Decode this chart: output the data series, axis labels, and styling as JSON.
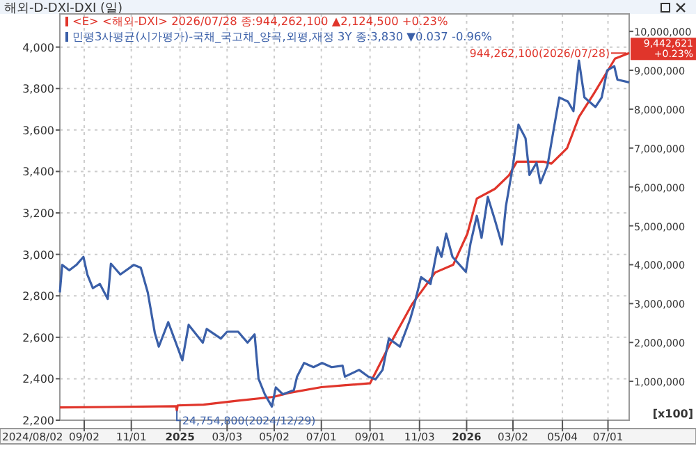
{
  "chart_data": {
    "type": "line",
    "title": "해외-D-DXI-DXI (일)",
    "y2label": "[x100]",
    "legend": "top left",
    "grid": true,
    "line_style": "solid",
    "marker": "none",
    "xlim": [
      "2024-08-02",
      "2026-07-28"
    ],
    "xticks": [
      {
        "value": "2024-09-02",
        "label": "09/02"
      },
      {
        "value": "2024-11-01",
        "label": "11/01"
      },
      {
        "value": "2025-01-02",
        "label": "2025"
      },
      {
        "value": "2025-03-03",
        "label": "03/03"
      },
      {
        "value": "2025-05-02",
        "label": "05/02"
      },
      {
        "value": "2025-07-01",
        "label": "07/01"
      },
      {
        "value": "2025-09-01",
        "label": "09/01"
      },
      {
        "value": "2025-11-03",
        "label": "11/03"
      },
      {
        "value": "2026-01-02",
        "label": "2026"
      },
      {
        "value": "2026-03-02",
        "label": "03/02"
      },
      {
        "value": "2026-05-04",
        "label": "05/04"
      },
      {
        "value": "2026-07-01",
        "label": "07/01"
      }
    ],
    "ylim": [
      2200,
      4160
    ],
    "yticks": [
      {
        "value": 2200,
        "label": "2,200"
      },
      {
        "value": 2400,
        "label": "2,400"
      },
      {
        "value": 2600,
        "label": "2,600"
      },
      {
        "value": 2800,
        "label": "2,800"
      },
      {
        "value": 3000,
        "label": "3,000"
      },
      {
        "value": 3200,
        "label": "3,200"
      },
      {
        "value": 3400,
        "label": "3,400"
      },
      {
        "value": 3600,
        "label": "3,600"
      },
      {
        "value": 3800,
        "label": "3,800"
      },
      {
        "value": 4000,
        "label": "4,000"
      }
    ],
    "y2lim": [
      0,
      10450000
    ],
    "y2ticks": [
      {
        "value": 1000000,
        "label": "1,000,000"
      },
      {
        "value": 2000000,
        "label": "2,000,000"
      },
      {
        "value": 3000000,
        "label": "3,000,000"
      },
      {
        "value": 4000000,
        "label": "4,000,000"
      },
      {
        "value": 5000000,
        "label": "5,000,000"
      },
      {
        "value": 6000000,
        "label": "6,000,000"
      },
      {
        "value": 7000000,
        "label": "7,000,000"
      },
      {
        "value": 8000000,
        "label": "8,000,000"
      },
      {
        "value": 9000000,
        "label": "9,000,000"
      },
      {
        "value": 10000000,
        "label": "10,000,000"
      }
    ],
    "series": [
      {
        "name": "<E> <해외-DXI> 2026/07/28 종:944,262,100 ▲2,124,500 +0.23%",
        "color": "#e0352b",
        "axis": "y2",
        "x": [
          "2024-08-02",
          "2024-10-01",
          "2024-12-28",
          "2024-12-29",
          "2024-12-30",
          "2025-02-01",
          "2025-03-15",
          "2025-05-01",
          "2025-05-20",
          "2025-07-01",
          "2025-08-01",
          "2025-09-01",
          "2025-09-25",
          "2025-10-25",
          "2025-11-05",
          "2025-11-23",
          "2025-12-16",
          "2026-01-03",
          "2026-01-15",
          "2026-02-07",
          "2026-02-25",
          "2026-03-07",
          "2026-04-10",
          "2026-04-20",
          "2026-05-10",
          "2026-05-25",
          "2026-06-13",
          "2026-07-01",
          "2026-07-10",
          "2026-07-28"
        ],
        "values": [
          330000,
          340000,
          360000,
          247548,
          380000,
          400000,
          500000,
          600000,
          700000,
          850000,
          900000,
          950000,
          1900000,
          3000000,
          3300000,
          3800000,
          4000000,
          4800000,
          5700000,
          5950000,
          6300000,
          6650000,
          6650000,
          6600000,
          7000000,
          7800000,
          8400000,
          9000000,
          9300000,
          9442621
        ]
      },
      {
        "name": "민평3사평균(시가평가)-국채_국고채_양곡,외평,재정 3Y 종:3,830 ▼0.037 -0.96%",
        "color": "#3a5fa8",
        "axis": "y",
        "x": [
          "2024-08-02",
          "2024-08-05",
          "2024-08-14",
          "2024-08-23",
          "2024-09-01",
          "2024-09-06",
          "2024-09-13",
          "2024-09-22",
          "2024-10-02",
          "2024-10-06",
          "2024-10-18",
          "2024-11-04",
          "2024-11-13",
          "2024-11-22",
          "2024-12-01",
          "2024-12-06",
          "2024-12-18",
          "2025-01-05",
          "2025-01-13",
          "2025-01-31",
          "2025-02-05",
          "2025-02-23",
          "2025-03-03",
          "2025-03-17",
          "2025-03-29",
          "2025-04-07",
          "2025-04-12",
          "2025-04-20",
          "2025-04-29",
          "2025-05-04",
          "2025-05-13",
          "2025-05-27",
          "2025-05-31",
          "2025-06-09",
          "2025-06-21",
          "2025-07-02",
          "2025-07-14",
          "2025-07-28",
          "2025-07-31",
          "2025-08-18",
          "2025-08-30",
          "2025-09-08",
          "2025-09-17",
          "2025-09-25",
          "2025-10-09",
          "2025-10-22",
          "2025-10-27",
          "2025-11-05",
          "2025-11-17",
          "2025-11-26",
          "2025-12-01",
          "2025-12-07",
          "2025-12-15",
          "2026-01-01",
          "2026-01-07",
          "2026-01-15",
          "2026-01-21",
          "2026-01-29",
          "2026-02-07",
          "2026-02-16",
          "2026-02-21",
          "2026-03-02",
          "2026-03-09",
          "2026-03-18",
          "2026-03-23",
          "2026-04-01",
          "2026-04-06",
          "2026-04-15",
          "2026-04-23",
          "2026-04-30",
          "2026-05-11",
          "2026-05-18",
          "2026-05-25",
          "2026-06-01",
          "2026-06-15",
          "2026-06-23",
          "2026-06-30",
          "2026-07-09",
          "2026-07-13",
          "2026-07-28"
        ],
        "values": [
          2816,
          2949,
          2923,
          2949,
          2988,
          2903,
          2837,
          2857,
          2785,
          2955,
          2903,
          2949,
          2936,
          2816,
          2620,
          2555,
          2673,
          2489,
          2660,
          2574,
          2640,
          2594,
          2627,
          2627,
          2574,
          2614,
          2400,
          2325,
          2266,
          2358,
          2325,
          2345,
          2410,
          2476,
          2456,
          2476,
          2456,
          2463,
          2410,
          2443,
          2410,
          2397,
          2443,
          2594,
          2555,
          2686,
          2752,
          2890,
          2857,
          3034,
          2988,
          3100,
          2988,
          2916,
          3054,
          3186,
          3080,
          3277,
          3166,
          3048,
          3232,
          3429,
          3626,
          3560,
          3383,
          3442,
          3343,
          3429,
          3606,
          3757,
          3737,
          3691,
          3935,
          3757,
          3711,
          3757,
          3888,
          3908,
          3843,
          3830
        ]
      }
    ],
    "annotations": [
      "944,262,100(2026/07/28)",
      "24,754,800(2024/12/29)",
      "9,442,621\n+0.23%",
      "2024/08/02"
    ]
  }
}
